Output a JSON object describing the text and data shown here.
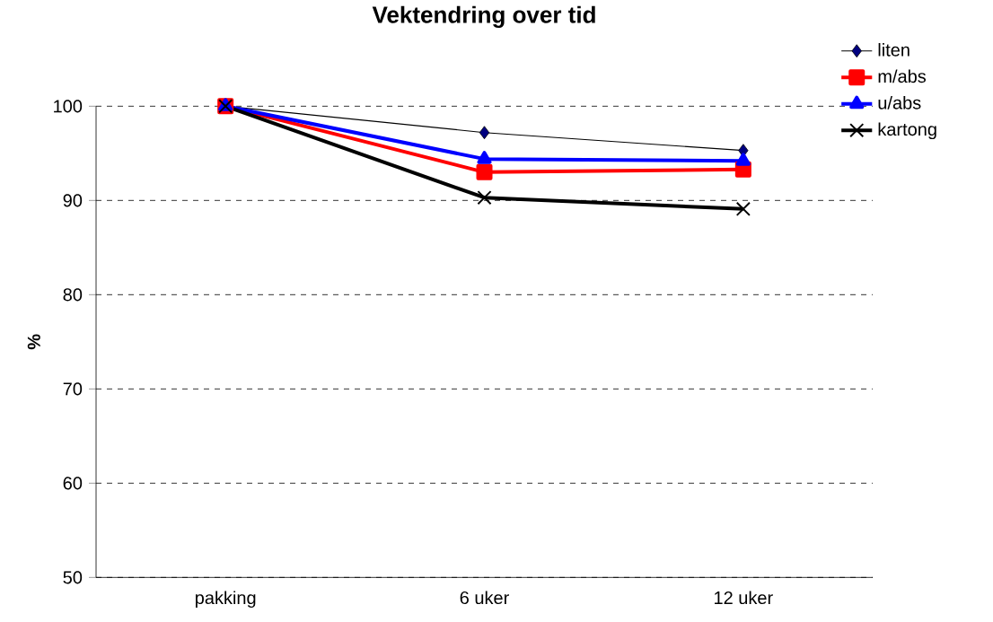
{
  "chart_data": {
    "type": "line",
    "title": "Vektendring over tid",
    "ylabel": "%",
    "categories": [
      "pakking",
      "6 uker",
      "12 uker"
    ],
    "series": [
      {
        "name": "liten",
        "color": "#000080",
        "values": [
          100,
          97.2,
          95.3
        ],
        "marker": "diamond"
      },
      {
        "name": "m/abs",
        "color": "#ff0000",
        "values": [
          100,
          93.0,
          93.3
        ],
        "marker": "square"
      },
      {
        "name": "u/abs",
        "color": "#0000ff",
        "values": [
          100,
          94.4,
          94.2
        ],
        "marker": "triangle"
      },
      {
        "name": "kartong",
        "color": "#000000",
        "values": [
          100,
          90.3,
          89.1
        ],
        "marker": "cross"
      }
    ],
    "ylim": [
      50,
      100
    ],
    "yticks": [
      50,
      60,
      70,
      80,
      90,
      100
    ],
    "grid": "y",
    "legend": "top right",
    "line_style": "solid"
  }
}
